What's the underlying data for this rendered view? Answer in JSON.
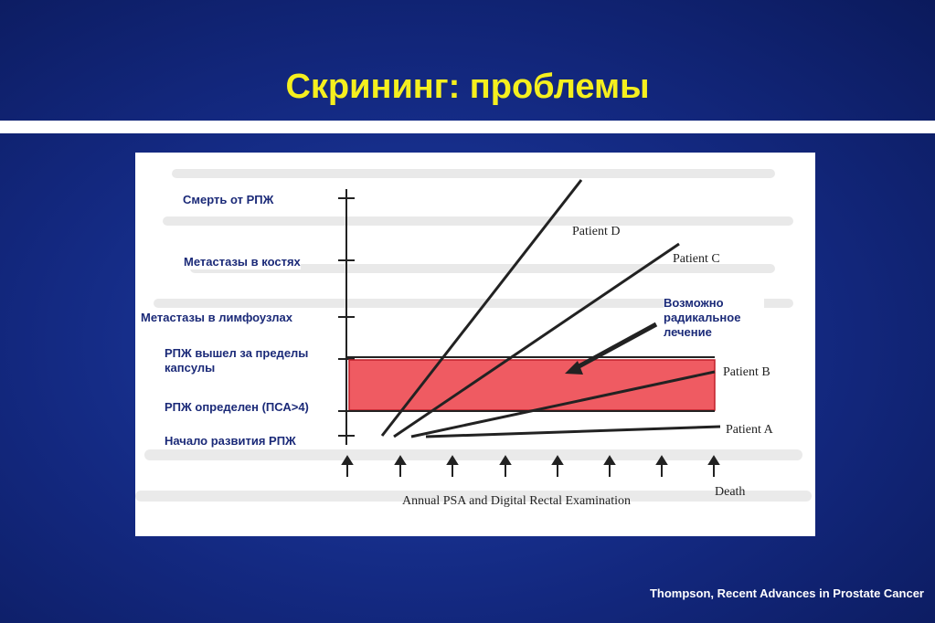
{
  "slide": {
    "title": "Скрининг: проблемы",
    "credit": "Thompson, Recent Advances in Prostate Cancer"
  },
  "diagram": {
    "stage_labels": [
      "Смерть от РПЖ",
      "Метастазы в костях",
      "Метастазы в лимфоузлах",
      "РПЖ вышел за пределы капсулы",
      "РПЖ определен (ПСА>4)",
      "Начало развития РПЖ"
    ],
    "patients": [
      "Patient D",
      "Patient C",
      "Patient B",
      "Patient A"
    ],
    "callout": "Возможно радикальное лечение",
    "x_axis_label": "Annual PSA and Digital Rectal Examination",
    "end_label": "Death",
    "colors": {
      "window_fill": "#ef5b62",
      "window_stroke": "#c0202a",
      "arrow": "#222222"
    }
  }
}
